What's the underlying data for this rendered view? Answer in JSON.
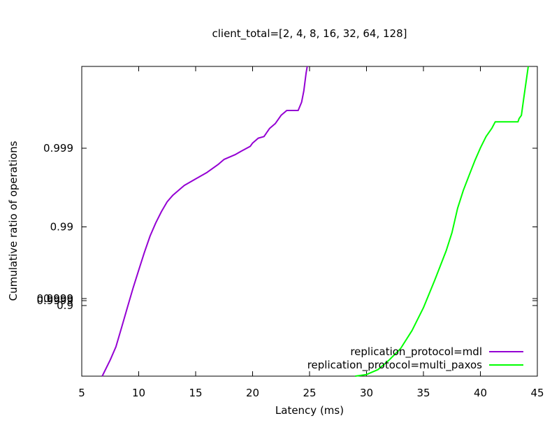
{
  "chart_data": {
    "type": "line",
    "title": "client_total=[2, 4, 8, 16, 32, 64, 128]",
    "xlabel": "Latency (ms)",
    "ylabel": "Cumulative ratio of operations",
    "xlim": [
      5,
      45
    ],
    "x_ticks": [
      5,
      10,
      15,
      20,
      25,
      30,
      35,
      40,
      45
    ],
    "y_scale": "log-complement (nines)",
    "y_ticks": [
      "0.9",
      "0.99",
      "0.999",
      "0.9999"
    ],
    "y_overlap_labels": [
      "0.999",
      "0.9999"
    ],
    "grid": false,
    "legend_position": "bottom-right",
    "series": [
      {
        "name": "replication_protocol=mdl",
        "color": "#9400d3",
        "points": [
          [
            6.8,
            0.0
          ],
          [
            7.5,
            0.1
          ],
          [
            8.0,
            0.18
          ],
          [
            8.5,
            0.3
          ],
          [
            9.0,
            0.42
          ],
          [
            9.5,
            0.54
          ],
          [
            10.0,
            0.65
          ],
          [
            10.5,
            0.76
          ],
          [
            11.0,
            0.86
          ],
          [
            11.5,
            0.94
          ],
          [
            12.0,
            1.01
          ],
          [
            12.5,
            1.07
          ],
          [
            13.0,
            1.11
          ],
          [
            13.5,
            1.14
          ],
          [
            14.0,
            1.17
          ],
          [
            15.0,
            1.21
          ],
          [
            16.0,
            1.25
          ],
          [
            17.0,
            1.3
          ],
          [
            17.5,
            1.33
          ],
          [
            18.5,
            1.36
          ],
          [
            19.0,
            1.38
          ],
          [
            19.8,
            1.41
          ],
          [
            20.0,
            1.43
          ],
          [
            20.5,
            1.46
          ],
          [
            21.0,
            1.47
          ],
          [
            21.5,
            1.52
          ],
          [
            22.0,
            1.55
          ],
          [
            22.5,
            1.6
          ],
          [
            23.0,
            1.63
          ],
          [
            24.0,
            1.63
          ],
          [
            24.3,
            1.68
          ],
          [
            24.5,
            1.75
          ],
          [
            24.7,
            1.86
          ],
          [
            24.8,
            1.9
          ]
        ]
      },
      {
        "name": "replication_protocol=multi_paxos",
        "color": "#00ff00",
        "points": [
          [
            29.0,
            0.0
          ],
          [
            30.0,
            0.01
          ],
          [
            31.0,
            0.04
          ],
          [
            32.0,
            0.1
          ],
          [
            33.0,
            0.17
          ],
          [
            34.0,
            0.28
          ],
          [
            35.0,
            0.42
          ],
          [
            36.0,
            0.59
          ],
          [
            37.0,
            0.77
          ],
          [
            37.5,
            0.88
          ],
          [
            38.0,
            1.03
          ],
          [
            38.5,
            1.14
          ],
          [
            39.0,
            1.23
          ],
          [
            39.5,
            1.32
          ],
          [
            40.0,
            1.4
          ],
          [
            40.5,
            1.47
          ],
          [
            41.0,
            1.52
          ],
          [
            41.3,
            1.56
          ],
          [
            42.0,
            1.56
          ],
          [
            43.3,
            1.56
          ],
          [
            43.4,
            1.58
          ],
          [
            43.6,
            1.6
          ],
          [
            43.8,
            1.7
          ],
          [
            44.0,
            1.8
          ],
          [
            44.2,
            1.9
          ]
        ]
      }
    ]
  }
}
